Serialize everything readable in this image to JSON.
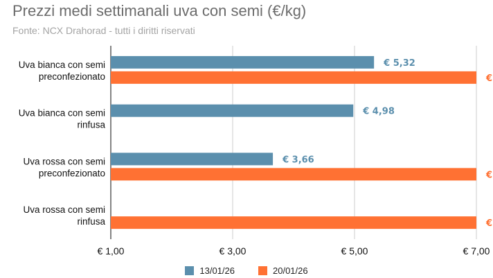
{
  "title": "Prezzi medi settimanali uva con semi (€/kg)",
  "subtitle": "Fonte: NCX Drahorad - tutti i diritti riservati",
  "colors": {
    "series_a": "#5b8fad",
    "series_b": "#ff7133",
    "grid": "#cccccc"
  },
  "chart_data": {
    "type": "bar",
    "orientation": "horizontal",
    "title": "Prezzi medi settimanali uva con semi (€/kg)",
    "categories": [
      [
        "Uva bianca con semi",
        "preconfezionato"
      ],
      [
        "Uva bianca con semi",
        "rinfusa"
      ],
      [
        "Uva rossa con semi",
        "preconfezionato"
      ],
      [
        "Uva rossa con semi",
        "rinfusa"
      ]
    ],
    "series": [
      {
        "name": "13/01/26",
        "values": [
          5.32,
          4.98,
          3.66,
          null
        ],
        "labels": [
          "€ 5,32",
          "€ 4,98",
          "€ 3,66",
          ""
        ]
      },
      {
        "name": "20/01/26",
        "values": [
          7.0,
          null,
          7.0,
          7.0
        ],
        "labels": [
          "€",
          "",
          "€",
          "€"
        ]
      }
    ],
    "xlim": [
      1,
      7
    ],
    "xticks": [
      1,
      3,
      5,
      7
    ],
    "xtick_labels": [
      "€ 1,00",
      "€ 3,00",
      "€ 5,00",
      "€ 7,00"
    ],
    "grid": true,
    "legend_position": "bottom"
  }
}
